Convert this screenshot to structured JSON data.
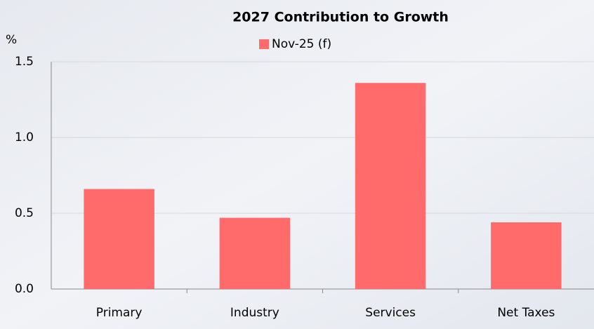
{
  "chart_data": {
    "type": "bar",
    "title": "2027 Contribution to Growth",
    "y_label": "%",
    "categories": [
      "Primary",
      "Industry",
      "Services",
      "Net Taxes"
    ],
    "series": [
      {
        "name": "Nov-25 (f)",
        "color": "#ff6b6b",
        "values": [
          0.66,
          0.47,
          1.36,
          0.44
        ]
      }
    ],
    "ylim": [
      0,
      1.5
    ],
    "yticks": [
      {
        "value": 0,
        "label": "0.0"
      },
      {
        "value": 0.5,
        "label": "0.5"
      },
      {
        "value": 1,
        "label": "1.0"
      },
      {
        "value": 1.5,
        "label": "1.5"
      }
    ],
    "grid": true
  }
}
